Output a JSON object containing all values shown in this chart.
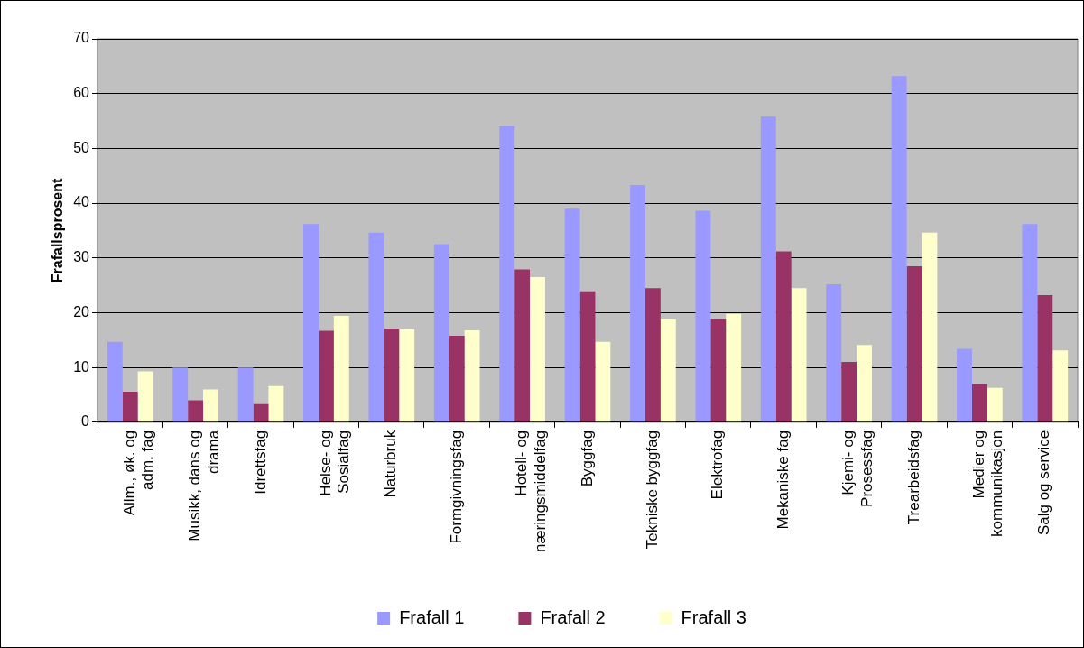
{
  "chart_data": {
    "type": "bar",
    "ylabel": "Frafallsprosent",
    "categories": [
      "Allm., øk. og adm. fag",
      "Musikk, dans og drama",
      "Idrettsfag",
      "Helse- og Sosialfag",
      "Naturbruk",
      "Formgivningsfag",
      "Hotell- og næringsmiddelfag",
      "Byggfag",
      "Tekniske byggfag",
      "Elektrofag",
      "Mekaniske fag",
      "Kjemi- og Prosessfag",
      "Trearbeidsfag",
      "Medier og kommunikasjon",
      "Salg og service"
    ],
    "series": [
      {
        "name": "Frafall 1",
        "color": "#9999ff",
        "values": [
          14.7,
          10,
          10,
          36.2,
          34.6,
          32.5,
          54,
          39,
          43.3,
          38.6,
          55.8,
          25.2,
          63.2,
          13.4,
          36.2
        ]
      },
      {
        "name": "Frafall 2",
        "color": "#993366",
        "values": [
          5.6,
          4,
          3.3,
          16.7,
          17.1,
          15.8,
          27.9,
          23.9,
          24.5,
          18.8,
          31.2,
          11,
          28.5,
          7,
          23.2
        ]
      },
      {
        "name": "Frafall 3",
        "color": "#ffffcc",
        "values": [
          9.3,
          6,
          6.6,
          19.4,
          17,
          16.8,
          26.5,
          14.7,
          18.8,
          19.8,
          24.5,
          14.1,
          34.6,
          6.3,
          13.1
        ]
      }
    ],
    "ylim": [
      0,
      70
    ],
    "yticks": [
      0,
      10,
      20,
      30,
      40,
      50,
      60,
      70
    ],
    "grid": "y",
    "legend": "bottom"
  }
}
